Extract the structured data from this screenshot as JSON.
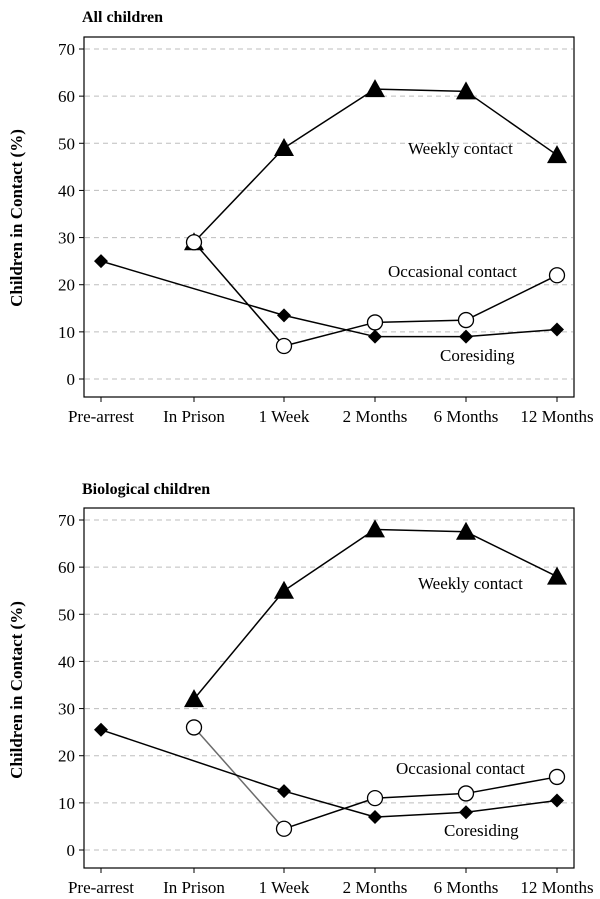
{
  "chart_data": [
    {
      "type": "line",
      "title": "All children",
      "ylabel": "Children in Contact (%)",
      "ylim": [
        0,
        70
      ],
      "yticks": [
        0,
        10,
        20,
        30,
        40,
        50,
        60,
        70
      ],
      "grid": "horizontal dashed",
      "categories": [
        "Pre-arrest",
        "In Prison",
        "1 Week",
        "2 Months",
        "6 Months",
        "12 Months"
      ],
      "series": [
        {
          "name": "Weekly contact",
          "marker": "triangle",
          "values": [
            null,
            29,
            49,
            61.5,
            61,
            47.5
          ]
        },
        {
          "name": "Occasional contact",
          "marker": "circle",
          "values": [
            null,
            29,
            7,
            12,
            12.5,
            22
          ]
        },
        {
          "name": "Coresiding",
          "marker": "diamond",
          "values": [
            25,
            null,
            13.5,
            9,
            9,
            10.5
          ]
        }
      ],
      "annotations": [
        "Weekly contact",
        "Occasional contact",
        "Coresiding"
      ]
    },
    {
      "type": "line",
      "title": "Biological children",
      "ylabel": "Children in Contact (%)",
      "ylim": [
        0,
        70
      ],
      "yticks": [
        0,
        10,
        20,
        30,
        40,
        50,
        60,
        70
      ],
      "grid": "horizontal dashed",
      "categories": [
        "Pre-arrest",
        "In Prison",
        "1 Week",
        "2 Months",
        "6 Months",
        "12 Months"
      ],
      "series": [
        {
          "name": "Weekly contact",
          "marker": "triangle",
          "values": [
            null,
            32,
            55,
            68,
            67.5,
            58
          ]
        },
        {
          "name": "Occasional contact",
          "marker": "circle",
          "values": [
            null,
            26,
            4.5,
            11,
            12,
            15.5
          ]
        },
        {
          "name": "Coresiding",
          "marker": "diamond",
          "values": [
            25.5,
            null,
            12.5,
            7,
            8,
            10.5
          ]
        }
      ],
      "annotations": [
        "Weekly contact",
        "Occasional contact",
        "Coresiding"
      ]
    }
  ]
}
